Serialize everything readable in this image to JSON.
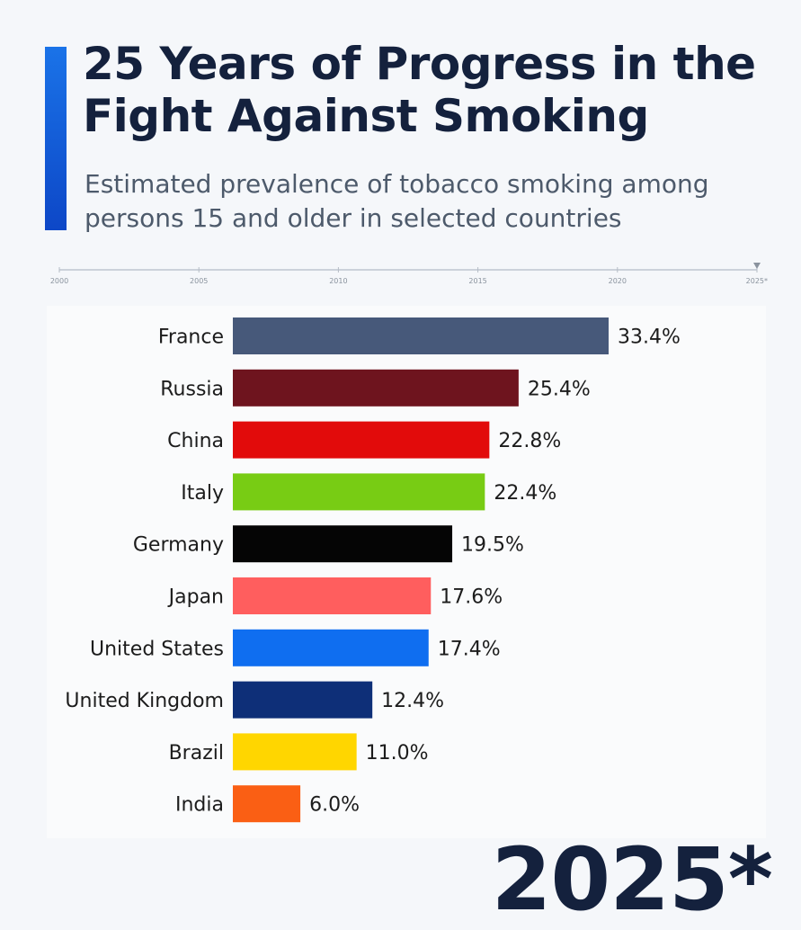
{
  "header": {
    "title": "25 Years of Progress in the Fight Against Smoking",
    "subtitle": "Estimated prevalence of tobacco smoking among persons 15 and older in selected countries"
  },
  "timeline": {
    "ticks": [
      "2000",
      "2005",
      "2010",
      "2015",
      "2020",
      "2025*"
    ],
    "current": "2025*"
  },
  "year_label": "2025*",
  "colors": {
    "accent": "#1a73e8",
    "title": "#14213d"
  },
  "chart_data": {
    "type": "bar",
    "orientation": "horizontal",
    "categories": [
      "France",
      "Russia",
      "China",
      "Italy",
      "Germany",
      "Japan",
      "United States",
      "United Kingdom",
      "Brazil",
      "India"
    ],
    "values": [
      33.4,
      25.4,
      22.8,
      22.4,
      19.5,
      17.6,
      17.4,
      12.4,
      11.0,
      6.0
    ],
    "value_labels": [
      "33.4%",
      "25.4%",
      "22.8%",
      "22.4%",
      "19.5%",
      "17.6%",
      "17.4%",
      "12.4%",
      "11.0%",
      "6.0%"
    ],
    "colors": [
      "#47597a",
      "#6e141e",
      "#e20b0b",
      "#78cc14",
      "#050505",
      "#ff5e5e",
      "#0f6ef0",
      "#0e2f78",
      "#ffd600",
      "#fa5f14"
    ],
    "xlim": [
      0,
      33.4
    ],
    "grid": false,
    "title": "",
    "xlabel": "",
    "ylabel": ""
  }
}
